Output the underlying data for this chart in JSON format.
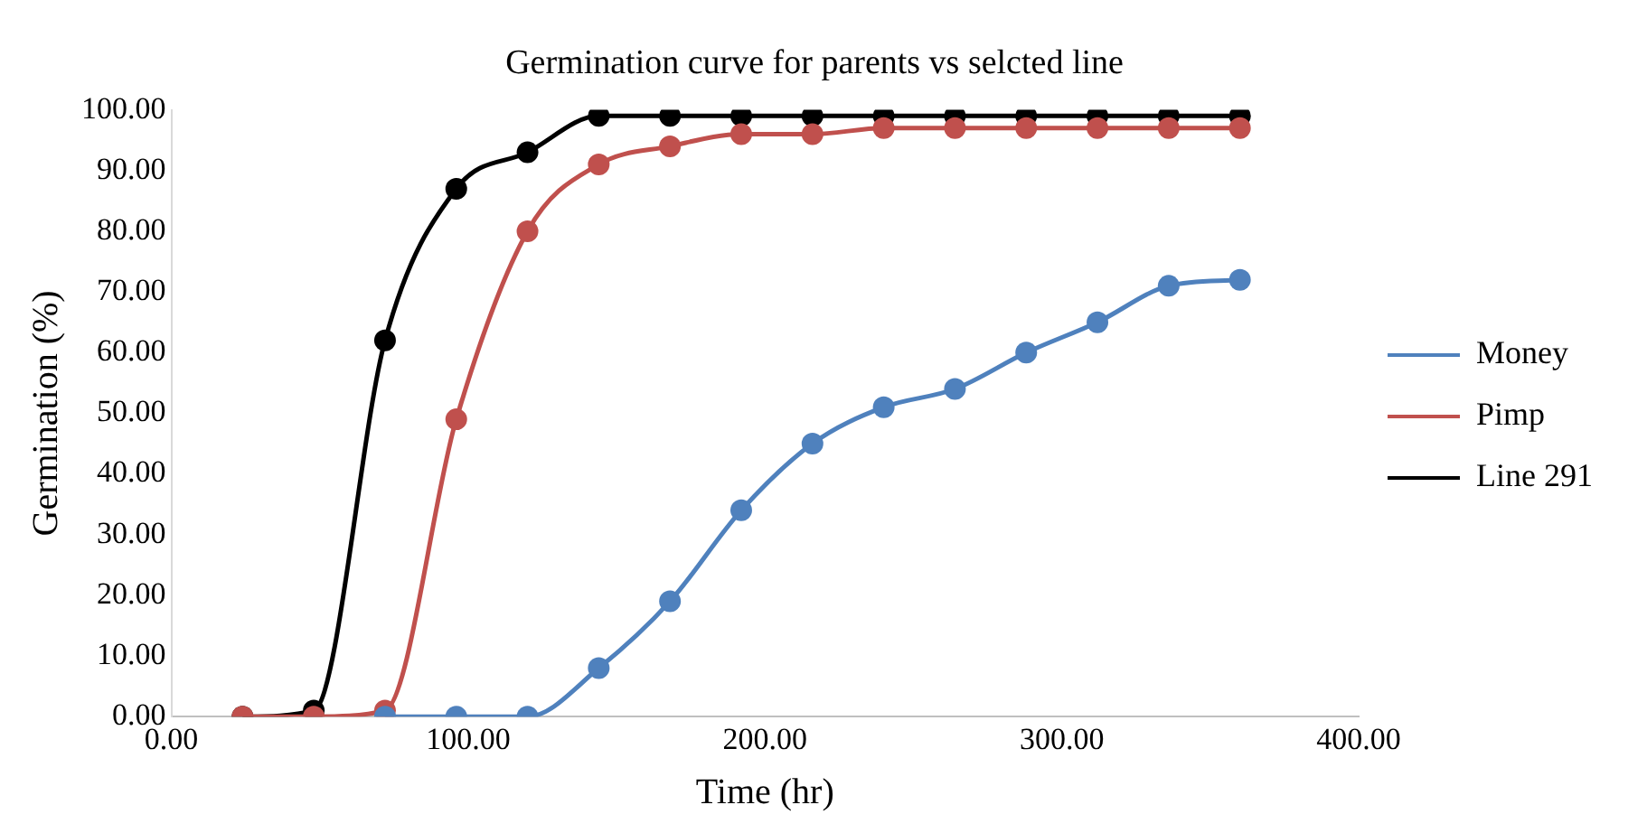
{
  "chart_data": {
    "type": "line",
    "title": "Germination curve for parents vs selcted line",
    "xlabel": "Time (hr)",
    "ylabel": "Germination (%)",
    "xlim": [
      0,
      400
    ],
    "xticks": [
      {
        "value": 0,
        "label": "0.00"
      },
      {
        "value": 100,
        "label": "100.00"
      },
      {
        "value": 200,
        "label": "200.00"
      },
      {
        "value": 300,
        "label": "300.00"
      },
      {
        "value": 400,
        "label": "400.00"
      }
    ],
    "ylim": [
      0,
      100
    ],
    "yticks": [
      {
        "value": 0,
        "label": "0.00"
      },
      {
        "value": 10,
        "label": "10.00"
      },
      {
        "value": 20,
        "label": "20.00"
      },
      {
        "value": 30,
        "label": "30.00"
      },
      {
        "value": 40,
        "label": "40.00"
      },
      {
        "value": 50,
        "label": "50.00"
      },
      {
        "value": 60,
        "label": "60.00"
      },
      {
        "value": 70,
        "label": "70.00"
      },
      {
        "value": 80,
        "label": "80.00"
      },
      {
        "value": 90,
        "label": "90.00"
      },
      {
        "value": 100,
        "label": "100.00"
      }
    ],
    "grid": false,
    "legend": "right",
    "marker": "circle",
    "line_style": "solid",
    "series": [
      {
        "name": "Money",
        "color": "#4f81bd",
        "x": [
          72,
          96,
          120,
          144,
          168,
          192,
          216,
          240,
          264,
          288,
          312,
          336,
          360
        ],
        "values": [
          0,
          0,
          0,
          8,
          19,
          34,
          45,
          51,
          54,
          60,
          65,
          71,
          72
        ]
      },
      {
        "name": "Pimp",
        "color": "#c0504d",
        "x": [
          24,
          48,
          72,
          96,
          120,
          144,
          168,
          192,
          216,
          240,
          264,
          288,
          312,
          336,
          360
        ],
        "values": [
          0,
          0,
          1,
          49,
          80,
          91,
          94,
          96,
          96,
          97,
          97,
          97,
          97,
          97,
          97
        ]
      },
      {
        "name": "Line 291",
        "color": "#000000",
        "x": [
          24,
          48,
          72,
          96,
          120,
          144,
          168,
          192,
          216,
          240,
          264,
          288,
          312,
          336,
          360
        ],
        "values": [
          0,
          1,
          62,
          87,
          93,
          99,
          99,
          99,
          99,
          99,
          99,
          99,
          99,
          99,
          99
        ]
      }
    ]
  }
}
